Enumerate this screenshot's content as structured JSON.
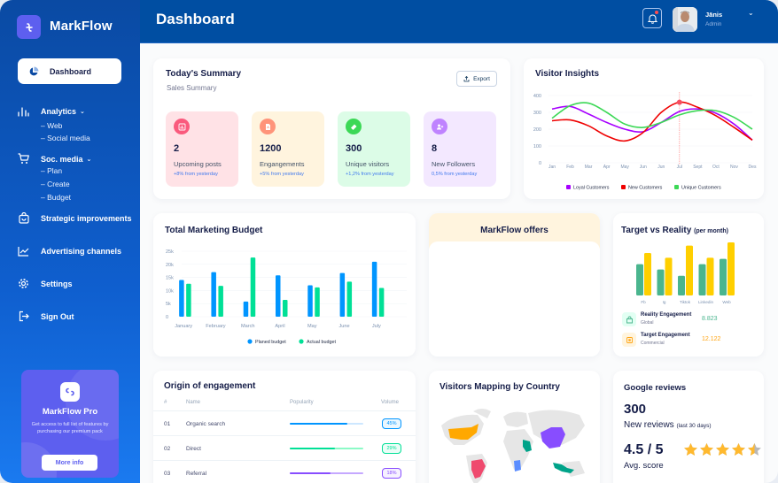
{
  "app": {
    "brand": "MarkFlow"
  },
  "sidebar": {
    "active_item": {
      "label": "Dashboard",
      "icon": "pie-chart-icon"
    },
    "items": [
      {
        "label": "Analytics",
        "icon": "bar-chart-icon",
        "expandable": true,
        "children": [
          "– Web",
          "– Social media"
        ]
      },
      {
        "label": "Soc. media",
        "icon": "cart-icon",
        "expandable": true,
        "children": [
          "– Plan",
          "– Create",
          "– Budget"
        ]
      },
      {
        "label": "Strategic improvements",
        "icon": "shopping-bag-icon"
      },
      {
        "label": "Advertising channels",
        "icon": "line-chart-icon"
      },
      {
        "label": "Settings",
        "icon": "gear-icon"
      },
      {
        "label": "Sign Out",
        "icon": "sign-out-icon"
      }
    ],
    "promo": {
      "title": "MarkFlow Pro",
      "text": "Get access to full list of features by purchasing our premium pack",
      "button": "More info"
    }
  },
  "header": {
    "title": "Dashboard",
    "user": {
      "name": "Jānis",
      "role": "Admin"
    },
    "notification_dot": true
  },
  "summary": {
    "title": "Today's Summary",
    "subtitle": "Sales Summary",
    "export_label": "Export",
    "stats": [
      {
        "value": "2",
        "label": "Upcoming posts",
        "change": "+8% from yesterday",
        "bg": "#ffe2e6",
        "icon_bg": "#fa5a7d",
        "icon": "bar-chart-icon"
      },
      {
        "value": "1200",
        "label": "Engangements",
        "change": "+5% from yesterday",
        "bg": "#fff4de",
        "icon_bg": "#ff947a",
        "icon": "document-icon"
      },
      {
        "value": "300",
        "label": "Unique visitors",
        "change": "+1,2% from yesterday",
        "bg": "#dcfce7",
        "icon_bg": "#3cd856",
        "icon": "tag-icon"
      },
      {
        "value": "8",
        "label": "New Followers",
        "change": "0,5% from yesterday",
        "bg": "#f3e8ff",
        "icon_bg": "#bf83ff",
        "icon": "add-user-icon"
      }
    ]
  },
  "offers": {
    "title": "MarkFlow offers"
  },
  "target": {
    "title": "Target vs Reality",
    "title_suffix": "(per month)",
    "legend": [
      {
        "title": "Reality Engagement",
        "sub": "Global",
        "value": "8.823",
        "color": "#4ab58e",
        "bg": "#e2fff3",
        "icon": "bag-icon"
      },
      {
        "title": "Target Engagement",
        "sub": "Commercial",
        "value": "12.122",
        "color": "#ffa412",
        "bg": "#fff4de",
        "icon": "ticket-icon"
      }
    ]
  },
  "origin": {
    "title": "Origin of engagement",
    "columns": [
      "#",
      "Name",
      "Popularity",
      "Volume"
    ],
    "rows": [
      {
        "num": "01",
        "name": "Organic search",
        "popularity": 0.78,
        "volume": "45%",
        "color": "#0095ff",
        "track": "#cde7ff"
      },
      {
        "num": "02",
        "name": "Direct",
        "popularity": 0.61,
        "volume": "29%",
        "color": "#00e096",
        "track": "#8cfac7"
      },
      {
        "num": "03",
        "name": "Referral",
        "popularity": 0.55,
        "volume": "18%",
        "color": "#884dff",
        "track": "#c5a8ff"
      }
    ]
  },
  "map": {
    "title": "Visitors Mapping by Country",
    "highlighted": [
      {
        "region": "USA",
        "color": "#ffa800"
      },
      {
        "region": "Brazil",
        "color": "#ef4a6e"
      },
      {
        "region": "Saudi Arabia",
        "color": "#00a389"
      },
      {
        "region": "DR Congo",
        "color": "#5b8dff"
      },
      {
        "region": "China",
        "color": "#884dff"
      },
      {
        "region": "Indonesia",
        "color": "#00a389"
      }
    ]
  },
  "reviews": {
    "title": "Google reviews",
    "count": "300",
    "count_label": "New reviews",
    "count_period": "(last 30 days)",
    "score": "4.5 / 5",
    "score_value": 4.5,
    "score_max": 5,
    "score_label": "Avg. score"
  },
  "chart_data": [
    {
      "id": "visitor-insights",
      "type": "line",
      "title": "Visitor Insights",
      "x": [
        "Jan",
        "Feb",
        "Mar",
        "Apr",
        "May",
        "Jun",
        "Jun",
        "Jul",
        "Sept",
        "Oct",
        "Nov",
        "Des"
      ],
      "ylim": [
        0,
        400
      ],
      "yticks": [
        0,
        100,
        200,
        300,
        400
      ],
      "grid": true,
      "legend": "bottom",
      "highlight": {
        "x": "Jul",
        "series": "New Customers",
        "value": 360
      },
      "series": [
        {
          "name": "Loyal Customers",
          "color": "#a700ff",
          "values": [
            320,
            335,
            290,
            240,
            200,
            185,
            240,
            305,
            320,
            295,
            230,
            135
          ]
        },
        {
          "name": "New Customers",
          "color": "#ef0000",
          "values": [
            250,
            255,
            220,
            160,
            130,
            180,
            300,
            360,
            330,
            280,
            210,
            135
          ]
        },
        {
          "name": "Unique Customers",
          "color": "#3cd856",
          "values": [
            265,
            340,
            355,
            300,
            230,
            210,
            240,
            285,
            310,
            310,
            270,
            200
          ]
        }
      ]
    },
    {
      "id": "marketing-budget",
      "type": "bar",
      "title": "Total Marketing Budget",
      "categories": [
        "January",
        "February",
        "March",
        "April",
        "May",
        "June",
        "July"
      ],
      "ylim": [
        0,
        25000
      ],
      "yticks": [
        "0",
        "5k",
        "10k",
        "15k",
        "20k",
        "25k"
      ],
      "ytick_values": [
        0,
        5000,
        10000,
        15000,
        20000,
        25000
      ],
      "grid": true,
      "legend": "bottom",
      "series": [
        {
          "name": "Planed budget",
          "color": "#0095ff",
          "values": [
            14000,
            17000,
            5800,
            15800,
            12000,
            16700,
            21000
          ]
        },
        {
          "name": "Actual budget",
          "color": "#00e096",
          "values": [
            12600,
            11800,
            22600,
            6400,
            11200,
            13400,
            11000
          ]
        }
      ]
    },
    {
      "id": "target-vs-reality",
      "type": "bar",
      "title": "Target vs Reality (per month)",
      "categories": [
        "Fb",
        "Ig",
        "Tiktok",
        "Linkedin",
        "Web"
      ],
      "ylim": [
        0,
        10
      ],
      "grid": false,
      "series": [
        {
          "name": "Reality",
          "color": "#4ab58e",
          "values": [
            5.9,
            4.9,
            3.7,
            5.9,
            6.9
          ]
        },
        {
          "name": "Target",
          "color": "#ffcf00",
          "values": [
            8.0,
            7.1,
            9.4,
            7.1,
            10.0
          ]
        }
      ]
    }
  ]
}
